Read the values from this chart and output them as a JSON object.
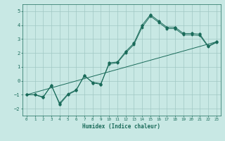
{
  "title": "",
  "xlabel": "Humidex (Indice chaleur)",
  "background_color": "#c8e8e4",
  "grid_color": "#a0c8c4",
  "line_color": "#1a6b5a",
  "spine_color": "#1a6b5a",
  "xlim": [
    -0.5,
    23.5
  ],
  "ylim": [
    -2.5,
    5.5
  ],
  "xticks": [
    0,
    1,
    2,
    3,
    4,
    5,
    6,
    7,
    8,
    9,
    10,
    11,
    12,
    13,
    14,
    15,
    16,
    17,
    18,
    19,
    20,
    21,
    22,
    23
  ],
  "yticks": [
    -2,
    -1,
    0,
    1,
    2,
    3,
    4,
    5
  ],
  "line1_x": [
    0,
    1,
    2,
    3,
    4,
    5,
    6,
    7,
    8,
    9,
    10,
    11,
    12,
    13,
    14,
    15,
    16,
    17,
    18,
    19,
    20,
    21,
    22,
    23
  ],
  "line1_y": [
    -1.0,
    -1.0,
    -1.2,
    -0.3,
    -1.7,
    -1.0,
    -0.7,
    0.4,
    -0.15,
    -0.25,
    1.3,
    1.35,
    2.1,
    2.7,
    4.0,
    4.75,
    4.3,
    3.85,
    3.85,
    3.4,
    3.4,
    3.35,
    2.5,
    2.8
  ],
  "line2_x": [
    0,
    1,
    2,
    3,
    4,
    5,
    6,
    7,
    8,
    9,
    10,
    11,
    12,
    13,
    14,
    15,
    16,
    17,
    18,
    19,
    20,
    21,
    22,
    23
  ],
  "line2_y": [
    -1.0,
    -1.0,
    -1.15,
    -0.35,
    -1.6,
    -0.95,
    -0.65,
    0.35,
    -0.1,
    -0.2,
    1.2,
    1.3,
    2.0,
    2.6,
    3.85,
    4.65,
    4.2,
    3.75,
    3.75,
    3.3,
    3.3,
    3.25,
    2.45,
    2.75
  ],
  "line3_x": [
    0,
    23
  ],
  "line3_y": [
    -1.0,
    2.8
  ],
  "xlabel_fontsize": 5.5,
  "tick_fontsize": 5.0
}
